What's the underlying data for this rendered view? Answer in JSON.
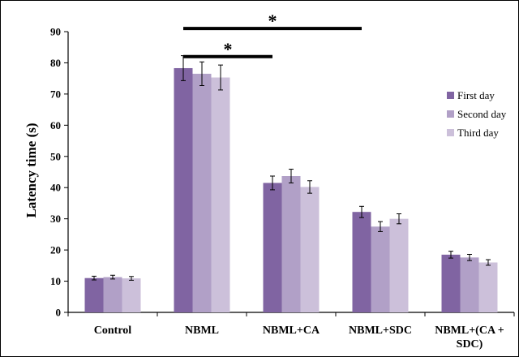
{
  "chart_data": {
    "type": "bar",
    "title": "",
    "xlabel": "",
    "ylabel": "Latency time (s)",
    "ylim": [
      0,
      90
    ],
    "yticks": [
      0,
      10,
      20,
      30,
      40,
      50,
      60,
      70,
      80,
      90
    ],
    "categories": [
      "Control",
      "NBML",
      "NBML+CA",
      "NBML+SDC",
      [
        "NBML+(CA +",
        "SDC)"
      ]
    ],
    "series": [
      {
        "name": "First day",
        "color": "#8064a2",
        "values": [
          11,
          78.3,
          41.5,
          32.2,
          18.5
        ],
        "errors": [
          0.6,
          4.0,
          2.2,
          1.8,
          1.1
        ]
      },
      {
        "name": "Second day",
        "color": "#b1a0c7",
        "values": [
          11.3,
          76.5,
          43.7,
          27.5,
          17.6
        ],
        "errors": [
          0.6,
          3.8,
          2.2,
          1.6,
          1.0
        ]
      },
      {
        "name": "Third day",
        "color": "#ccc0da",
        "values": [
          10.9,
          75.3,
          40.2,
          30.0,
          16.0
        ],
        "errors": [
          0.6,
          4.0,
          2.0,
          1.6,
          0.9
        ]
      }
    ],
    "legend_position": "right",
    "grid": false,
    "annotations": [
      {
        "text": "*",
        "from_category": 1,
        "to_category": 3,
        "level": 91
      },
      {
        "text": "*",
        "from_category": 1,
        "to_category": 2,
        "level": 82
      }
    ]
  }
}
